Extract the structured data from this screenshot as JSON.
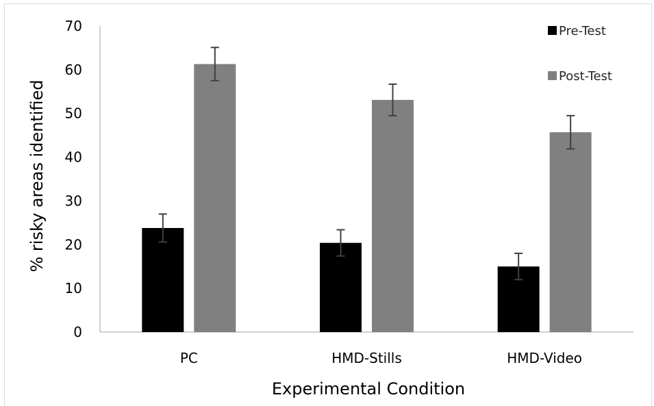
{
  "chart_data": {
    "type": "bar",
    "title": "",
    "xlabel": "Experimental Condition",
    "ylabel": "% risky areas identified",
    "ylim": [
      0,
      70
    ],
    "yticks": [
      0,
      10,
      20,
      30,
      40,
      50,
      60,
      70
    ],
    "grid": false,
    "legend_position": "top-right",
    "categories": [
      "PC",
      "HMD-Stills",
      "HMD-Video"
    ],
    "series": [
      {
        "name": "Pre-Test",
        "color": "#000000",
        "values": [
          23.8,
          20.4,
          15.0
        ],
        "error": [
          3.2,
          3.0,
          3.0
        ]
      },
      {
        "name": "Post-Test",
        "color": "#808080",
        "values": [
          61.3,
          53.1,
          45.7
        ],
        "error": [
          3.8,
          3.6,
          3.8
        ]
      }
    ]
  }
}
